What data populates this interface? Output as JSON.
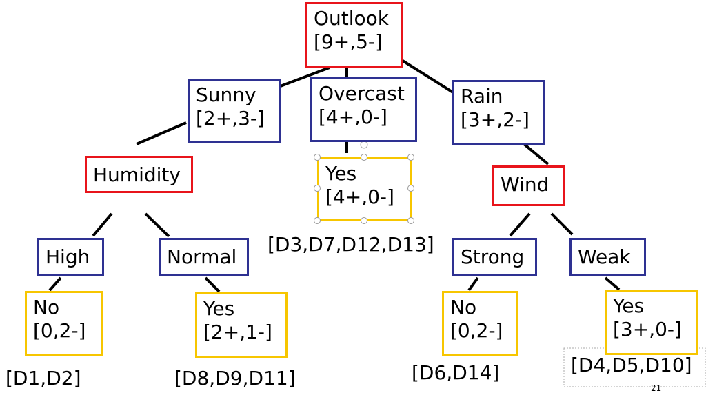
{
  "nodes": [
    {
      "label": "Outlook",
      "counts": "[9+,5-]"
    },
    {
      "label": "Sunny",
      "counts": "[2+,3-]"
    },
    {
      "label": "Overcast",
      "counts": "[4+,0-]"
    },
    {
      "label": "Rain",
      "counts": "[3+,2-]"
    },
    {
      "label": "Humidity"
    },
    {
      "label": "Yes",
      "counts": "[4+,0-]"
    },
    {
      "label": "Wind"
    },
    {
      "label": "High"
    },
    {
      "label": "Normal"
    },
    {
      "label": "Strong"
    },
    {
      "label": "Weak"
    },
    {
      "label": "No",
      "counts": "[0,2-]"
    },
    {
      "label": "Yes",
      "counts": "[2+,1-]"
    },
    {
      "label": "No",
      "counts": "[0,2-]"
    },
    {
      "label": "Yes",
      "counts": "[3+,0-]"
    }
  ],
  "annotations": [
    "[D3,D7,D12,D13]",
    "[D1,D2]",
    "[D8,D9,D11]",
    "[D6,D14]",
    "[D4,D5,D10]"
  ],
  "page_number": "21"
}
